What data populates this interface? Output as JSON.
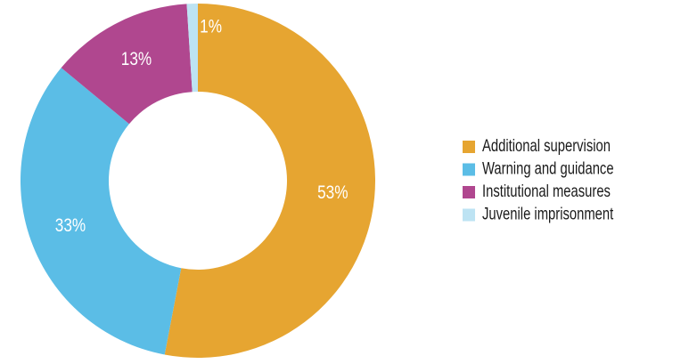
{
  "chart_data": {
    "type": "donut",
    "categories": [
      "Additional supervision",
      "Warning and guidance",
      "Institutional measures",
      "Juvenile imprisonment"
    ],
    "values": [
      53,
      33,
      13,
      1
    ],
    "value_labels": [
      "53%",
      "33%",
      "13%",
      "1%"
    ],
    "colors": [
      "#e6a531",
      "#5bbde6",
      "#b0478f",
      "#bde3f3"
    ],
    "legend": "right"
  }
}
